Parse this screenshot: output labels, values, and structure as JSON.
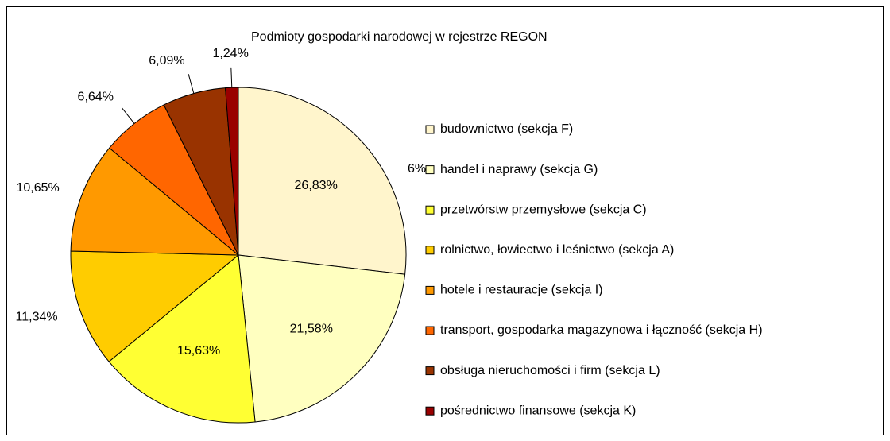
{
  "chart_data": {
    "type": "pie",
    "title": "Podmioty gospodarki narodowej w rejestrze REGON",
    "categories": [
      "budownictwo (sekcja F)",
      "handel i naprawy (sekcja G)",
      "przetwórstw przemysłowe (sekcja C)",
      "rolnictwo, łowiectwo i leśnictwo (sekcja A)",
      "hotele i restauracje (sekcja I)",
      "transport, gospodarka magazynowa i łączność (sekcja H)",
      "obsługa nieruchomości i firm (sekcja L)",
      "pośrednictwo finansowe (sekcja K)"
    ],
    "values": [
      26.83,
      21.58,
      15.63,
      11.34,
      10.65,
      6.64,
      6.09,
      1.24
    ],
    "value_labels": [
      "26,83%",
      "21,58%",
      "15,63%",
      "11,34%",
      "10,65%",
      "6,64%",
      "6,09%",
      "1,24%"
    ],
    "colors": [
      "#FFF5CC",
      "#FFFFC0",
      "#FFFF33",
      "#FFCC00",
      "#FF9900",
      "#FF6600",
      "#993300",
      "#990000"
    ],
    "annotations": [
      "6%"
    ],
    "legend": "right"
  }
}
